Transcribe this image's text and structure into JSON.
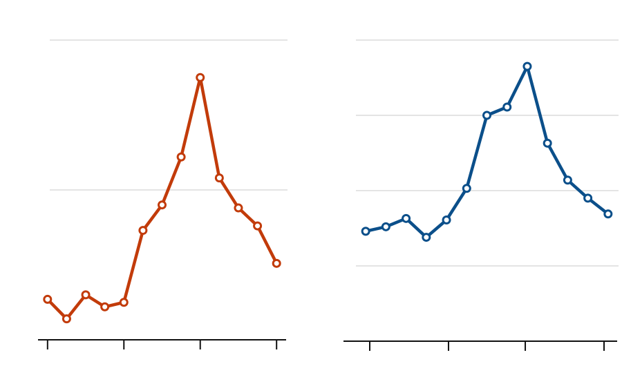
{
  "chart_data": [
    {
      "type": "line",
      "color": "#c23b0a",
      "x": [
        0,
        1,
        2,
        3,
        4,
        5,
        6,
        7,
        8,
        9,
        10,
        11,
        12
      ],
      "values": [
        0.27,
        0.14,
        0.3,
        0.22,
        0.25,
        0.73,
        0.9,
        1.22,
        1.75,
        1.08,
        0.88,
        0.76,
        0.51
      ],
      "xlim": [
        -0.5,
        12.5
      ],
      "xticks": [
        0,
        4,
        8,
        12
      ],
      "ylim": [
        0,
        2
      ],
      "yticks": [
        1,
        2
      ],
      "grid": true
    },
    {
      "type": "line",
      "color": "#0b4f8a",
      "x": [
        0,
        1,
        2,
        3,
        4,
        5,
        6,
        7,
        8,
        9,
        10,
        11,
        12
      ],
      "values": [
        1.46,
        1.52,
        1.63,
        1.38,
        1.61,
        2.03,
        3.0,
        3.11,
        3.65,
        2.63,
        2.14,
        1.9,
        1.69
      ],
      "xlim": [
        -1.1,
        12.45
      ],
      "xticks": [
        0.2,
        4.1,
        7.9,
        11.8
      ],
      "ylim": [
        0,
        4
      ],
      "yticks": [
        1,
        2,
        3,
        4
      ],
      "grid": true
    }
  ]
}
